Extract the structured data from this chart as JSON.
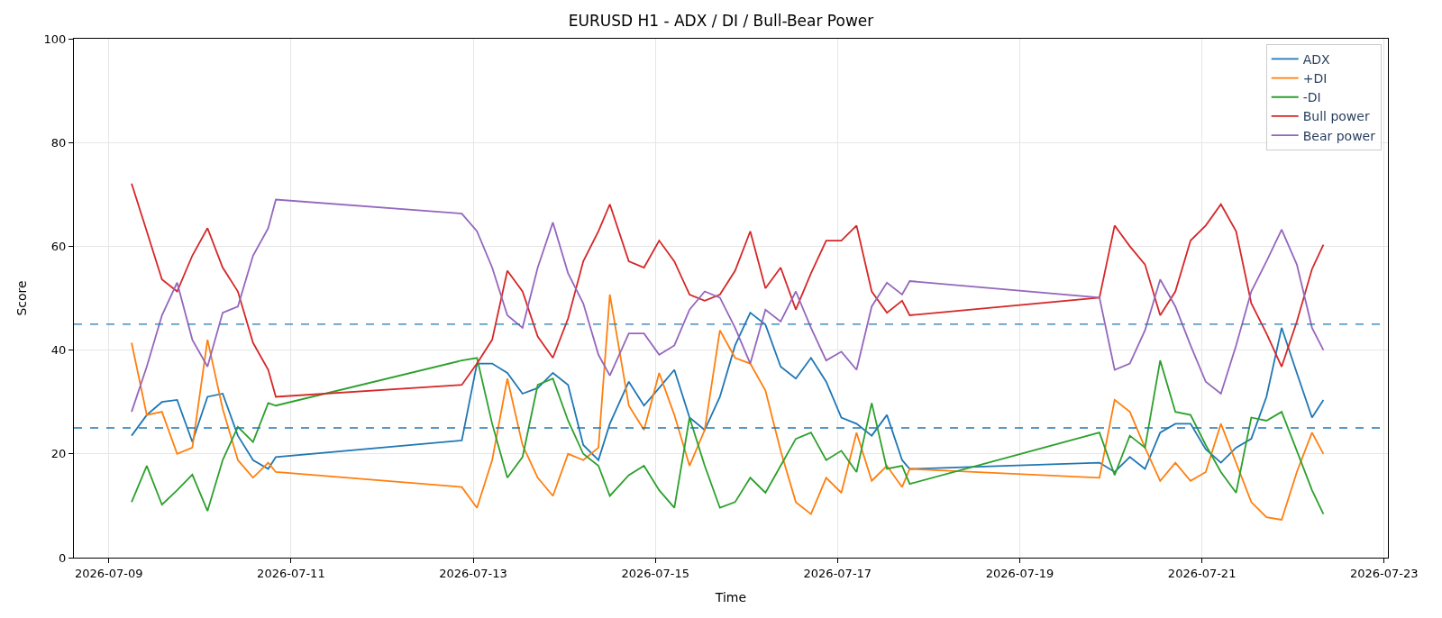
{
  "chart_data": {
    "type": "line",
    "title": "EURUSD H1 - ADX / DI / Bull-Bear Power",
    "xlabel": "Time",
    "ylabel": "Score",
    "x": [
      "2026-07-09T06:00",
      "2026-07-09T10:00",
      "2026-07-09T14:00",
      "2026-07-09T18:00",
      "2026-07-09T22:00",
      "2026-07-10T02:00",
      "2026-07-10T06:00",
      "2026-07-10T10:00",
      "2026-07-10T14:00",
      "2026-07-10T18:00",
      "2026-07-10T20:00",
      "2026-07-12T21:00",
      "2026-07-13T01:00",
      "2026-07-13T05:00",
      "2026-07-13T09:00",
      "2026-07-13T13:00",
      "2026-07-13T17:00",
      "2026-07-13T21:00",
      "2026-07-14T01:00",
      "2026-07-14T05:00",
      "2026-07-14T09:00",
      "2026-07-14T12:00",
      "2026-07-14T17:00",
      "2026-07-14T21:00",
      "2026-07-15T01:00",
      "2026-07-15T05:00",
      "2026-07-15T09:00",
      "2026-07-15T13:00",
      "2026-07-15T17:00",
      "2026-07-15T21:00",
      "2026-07-16T01:00",
      "2026-07-16T05:00",
      "2026-07-16T09:00",
      "2026-07-16T13:00",
      "2026-07-16T17:00",
      "2026-07-16T21:00",
      "2026-07-17T01:00",
      "2026-07-17T05:00",
      "2026-07-17T09:00",
      "2026-07-17T13:00",
      "2026-07-17T17:00",
      "2026-07-17T19:00",
      "2026-07-19T21:00",
      "2026-07-20T01:00",
      "2026-07-20T05:00",
      "2026-07-20T09:00",
      "2026-07-20T13:00",
      "2026-07-20T17:00",
      "2026-07-20T21:00",
      "2026-07-21T01:00",
      "2026-07-21T05:00",
      "2026-07-21T09:00",
      "2026-07-21T13:00",
      "2026-07-21T17:00",
      "2026-07-21T21:00",
      "2026-07-22T01:00",
      "2026-07-22T05:00",
      "2026-07-22T08:00"
    ],
    "series": [
      {
        "name": "ADX",
        "color": "#1f77b4",
        "values": [
          23.5,
          27.5,
          30,
          30.4,
          22.3,
          31,
          31.6,
          23.5,
          18.8,
          17.1,
          19.4,
          22.6,
          37.4,
          37.4,
          35.6,
          31.6,
          32.7,
          35.6,
          33.3,
          21.7,
          18.8,
          25.8,
          33.9,
          29.3,
          32.7,
          36.2,
          27,
          24.6,
          31,
          40.9,
          47.2,
          44.9,
          36.8,
          34.5,
          38.5,
          33.9,
          27,
          25.8,
          23.5,
          27.5,
          18.8,
          17.1,
          18.3,
          16.5,
          19.4,
          17.1,
          24.1,
          25.8,
          25.8,
          20.9,
          18.3,
          21.2,
          22.9,
          31,
          44.3,
          35.6,
          27,
          30.4
        ]
      },
      {
        "name": "+DI",
        "color": "#ff7f0e",
        "values": [
          41.4,
          27.5,
          28.1,
          20,
          21.2,
          42,
          28.7,
          18.8,
          15.4,
          18.3,
          16.5,
          13.6,
          9.6,
          18.8,
          34.5,
          21.7,
          15.4,
          11.9,
          20,
          18.8,
          21.2,
          50.7,
          29.3,
          24.6,
          35.6,
          27.5,
          17.7,
          24.6,
          43.8,
          38.5,
          37.4,
          32.2,
          20.6,
          10.7,
          8.4,
          15.4,
          12.5,
          24.1,
          14.8,
          17.7,
          13.6,
          17.1,
          15.4,
          30.4,
          28.1,
          21.2,
          14.8,
          18.3,
          14.8,
          16.5,
          25.8,
          18.3,
          10.7,
          7.8,
          7.3,
          16.5,
          24.1,
          20
        ]
      },
      {
        "name": "-DI",
        "color": "#2ca02c",
        "values": [
          10.7,
          17.7,
          10.2,
          13,
          16,
          9,
          18.8,
          25.2,
          22.3,
          29.8,
          29.3,
          38,
          38.5,
          25.8,
          15.4,
          19.4,
          33.3,
          34.5,
          26.4,
          20,
          17.7,
          11.9,
          15.9,
          17.7,
          13,
          9.6,
          27,
          17.7,
          9.6,
          10.7,
          15.4,
          12.5,
          17.7,
          22.9,
          24.1,
          18.8,
          20.6,
          16.5,
          29.8,
          17.1,
          17.7,
          14.2,
          24.1,
          15.9,
          23.5,
          21.2,
          38,
          28.1,
          27.5,
          21.7,
          16.5,
          12.5,
          27,
          26.4,
          28.1,
          20.6,
          13,
          8.4
        ]
      },
      {
        "name": "Bull power",
        "color": "#d62728",
        "values": [
          72.1,
          62.9,
          53.6,
          51.3,
          58.2,
          63.5,
          55.9,
          51.3,
          41.4,
          36.2,
          31,
          33.3,
          37.4,
          42,
          55.3,
          51.3,
          42.6,
          38.5,
          46.1,
          57.1,
          62.9,
          68.1,
          57.1,
          55.9,
          61.1,
          57.1,
          50.7,
          49.5,
          50.7,
          55.3,
          62.9,
          51.9,
          55.9,
          47.8,
          54.8,
          61.1,
          61.1,
          64,
          51.3,
          47.2,
          49.5,
          46.7,
          50.1,
          64,
          60,
          56.5,
          46.7,
          51.3,
          61.1,
          64,
          68.1,
          62.9,
          49,
          43.2,
          36.8,
          45.5,
          55.6,
          60.3
        ]
      },
      {
        "name": "Bear power",
        "color": "#9467bd",
        "values": [
          28.1,
          36.8,
          46.7,
          53,
          42,
          36.8,
          47.2,
          48.4,
          58.2,
          63.5,
          69,
          66.3,
          62.9,
          55.9,
          46.7,
          44.3,
          55.9,
          64.6,
          54.8,
          49,
          39.1,
          35.1,
          43.2,
          43.2,
          39.1,
          40.9,
          47.8,
          51.3,
          50.1,
          44.3,
          37.4,
          47.8,
          45.5,
          51.3,
          44.3,
          38,
          39.7,
          36.2,
          48.4,
          53,
          50.7,
          53.3,
          50.1,
          36.2,
          37.4,
          43.8,
          53.6,
          48.4,
          40.9,
          33.9,
          31.6,
          40.9,
          51.3,
          57.1,
          63.2,
          56.5,
          44.3,
          40
        ]
      }
    ],
    "ref_lines": [
      {
        "axis": "y",
        "value": 45,
        "color": "#1f77b4",
        "line_style": "dashed"
      },
      {
        "axis": "y",
        "value": 25,
        "color": "#1f77b4",
        "line_style": "dashed"
      }
    ],
    "xlim": [
      "2026-07-08T14:48",
      "2026-07-23T01:00"
    ],
    "xticks": [
      "2026-07-09",
      "2026-07-11",
      "2026-07-13",
      "2026-07-15",
      "2026-07-17",
      "2026-07-19",
      "2026-07-21",
      "2026-07-23"
    ],
    "ylim": [
      0,
      100
    ],
    "yticks": [
      0,
      20,
      40,
      60,
      80,
      100
    ],
    "grid": true,
    "legend": "top right",
    "line_style": "solid",
    "marker": "none"
  }
}
